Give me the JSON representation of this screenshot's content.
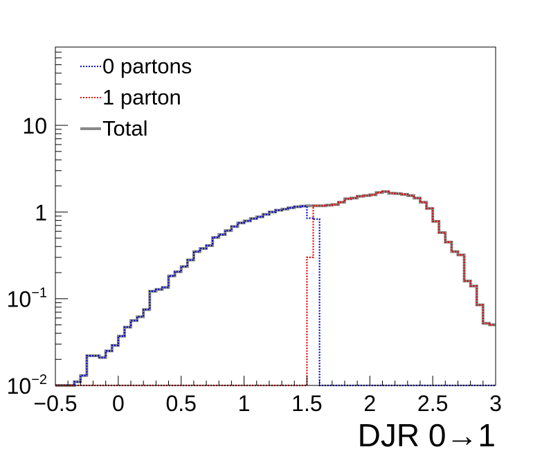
{
  "chart_data": {
    "type": "line",
    "xlabel": "DJR 0→1",
    "ylabel": "",
    "xlim": [
      -0.5,
      3
    ],
    "ylim": [
      0.01,
      80
    ],
    "yscale": "log",
    "grid": false,
    "legend_position": "top-left",
    "x_ticks": [
      {
        "value": -0.5,
        "label": "−0.5"
      },
      {
        "value": 0,
        "label": "0"
      },
      {
        "value": 0.5,
        "label": "0.5"
      },
      {
        "value": 1,
        "label": "1"
      },
      {
        "value": 1.5,
        "label": "1.5"
      },
      {
        "value": 2,
        "label": "2"
      },
      {
        "value": 2.5,
        "label": "2.5"
      },
      {
        "value": 3,
        "label": "3"
      }
    ],
    "y_ticks": [
      {
        "value": 0.01,
        "base": "10",
        "exp": "−2"
      },
      {
        "value": 0.1,
        "base": "10",
        "exp": "−1"
      },
      {
        "value": 1,
        "base": "1",
        "exp": ""
      },
      {
        "value": 10,
        "base": "10",
        "exp": ""
      }
    ],
    "bin_edges_start": -0.5,
    "bin_width": 0.05,
    "series": [
      {
        "name": "0 partons",
        "color": "#0000cc",
        "style": "dotted",
        "values": [
          0.01,
          0.01,
          0.01,
          0.011,
          0.013,
          0.022,
          0.022,
          0.021,
          0.025,
          0.029,
          0.037,
          0.047,
          0.056,
          0.062,
          0.075,
          0.122,
          0.128,
          0.135,
          0.183,
          0.205,
          0.235,
          0.28,
          0.35,
          0.38,
          0.41,
          0.51,
          0.55,
          0.61,
          0.68,
          0.75,
          0.79,
          0.84,
          0.88,
          0.94,
          1.0,
          1.05,
          1.08,
          1.12,
          1.15,
          1.17,
          0.85,
          0.83,
          0.01,
          0.01,
          0.01,
          0.01,
          0.01,
          0.01,
          0.01,
          0.01,
          0.01,
          0.01,
          0.01,
          0.01,
          0.01,
          0.01,
          0.01,
          0.01,
          0.01,
          0.01,
          0.01,
          0.01,
          0.01,
          0.01,
          0.01,
          0.01,
          0.01,
          0.01,
          0.01,
          0.01
        ]
      },
      {
        "name": "1 parton",
        "color": "#dd0000",
        "style": "dotted",
        "values": [
          0.01,
          0.01,
          0.01,
          0.01,
          0.01,
          0.01,
          0.01,
          0.01,
          0.01,
          0.01,
          0.01,
          0.01,
          0.01,
          0.01,
          0.01,
          0.01,
          0.01,
          0.01,
          0.01,
          0.01,
          0.01,
          0.01,
          0.01,
          0.01,
          0.01,
          0.01,
          0.01,
          0.01,
          0.01,
          0.01,
          0.01,
          0.01,
          0.01,
          0.01,
          0.01,
          0.01,
          0.01,
          0.01,
          0.01,
          0.01,
          0.3,
          1.18,
          1.18,
          1.2,
          1.22,
          1.3,
          1.42,
          1.45,
          1.52,
          1.55,
          1.58,
          1.68,
          1.72,
          1.65,
          1.63,
          1.6,
          1.55,
          1.45,
          1.3,
          1.1,
          0.78,
          0.58,
          0.45,
          0.35,
          0.32,
          0.16,
          0.14,
          0.085,
          0.052,
          0.05
        ]
      },
      {
        "name": "Total",
        "color": "#888888",
        "style": "solid",
        "values": [
          0.01,
          0.01,
          0.01,
          0.011,
          0.013,
          0.022,
          0.022,
          0.021,
          0.025,
          0.029,
          0.037,
          0.047,
          0.056,
          0.062,
          0.075,
          0.122,
          0.128,
          0.135,
          0.183,
          0.205,
          0.235,
          0.28,
          0.35,
          0.38,
          0.41,
          0.51,
          0.55,
          0.61,
          0.68,
          0.75,
          0.79,
          0.84,
          0.88,
          0.94,
          1.0,
          1.05,
          1.08,
          1.12,
          1.15,
          1.17,
          1.18,
          1.18,
          1.18,
          1.2,
          1.22,
          1.3,
          1.42,
          1.45,
          1.52,
          1.55,
          1.58,
          1.68,
          1.72,
          1.65,
          1.63,
          1.6,
          1.55,
          1.45,
          1.3,
          1.1,
          0.78,
          0.58,
          0.45,
          0.35,
          0.32,
          0.16,
          0.14,
          0.085,
          0.052,
          0.05
        ]
      }
    ]
  }
}
